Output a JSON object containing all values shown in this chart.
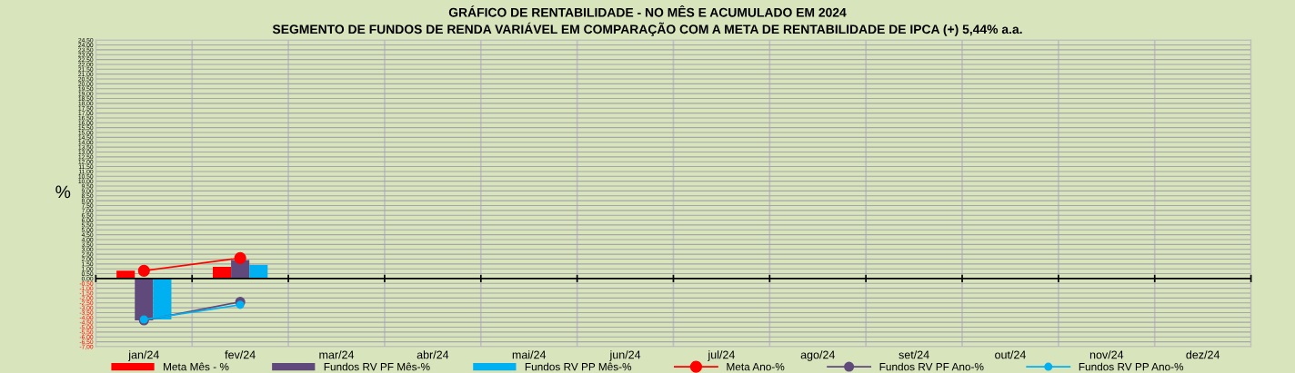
{
  "chart_data": {
    "type": "bar",
    "title": "GRÁFICO DE RENTABILIDADE - NO MÊS E ACUMULADO EM 2024",
    "subtitle": "SEGMENTO DE FUNDOS DE RENDA VARIÁVEL EM COMPARAÇÃO COM A META DE RENTABILIDADE DE IPCA (+) 5,44% a.a.",
    "ylabel": "%",
    "categories": [
      "jan/24",
      "fev/24",
      "mar/24",
      "abr/24",
      "mai/24",
      "jun/24",
      "jul/24",
      "ago/24",
      "set/24",
      "out/24",
      "nov/24",
      "dez/24"
    ],
    "series": [
      {
        "name": "Meta Mês - %",
        "color": "#ff0000",
        "values": [
          0.8,
          1.2,
          null,
          null,
          null,
          null,
          null,
          null,
          null,
          null,
          null,
          null
        ]
      },
      {
        "name": "Fundos RV PF Mês-%",
        "color": "#604a7b",
        "values": [
          -4.3,
          1.9,
          null,
          null,
          null,
          null,
          null,
          null,
          null,
          null,
          null,
          null
        ]
      },
      {
        "name": "Fundos RV PP Mês-%",
        "color": "#00b0f0",
        "values": [
          -4.2,
          1.4,
          null,
          null,
          null,
          null,
          null,
          null,
          null,
          null,
          null,
          null
        ]
      },
      {
        "name": "Meta Ano-%",
        "type": "line",
        "color": "#ff0000",
        "values": [
          0.8,
          2.1,
          null,
          null,
          null,
          null,
          null,
          null,
          null,
          null,
          null,
          null
        ]
      },
      {
        "name": "Fundos RV PF Ano-%",
        "type": "line",
        "color": "#604a7b",
        "values": [
          -4.3,
          -2.4,
          null,
          null,
          null,
          null,
          null,
          null,
          null,
          null,
          null,
          null
        ]
      },
      {
        "name": "Fundos RV PP Ano-%",
        "type": "line",
        "color": "#00b0f0",
        "values": [
          -4.2,
          -2.7,
          null,
          null,
          null,
          null,
          null,
          null,
          null,
          null,
          null,
          null
        ]
      }
    ],
    "ylim": [
      -7,
      24.5
    ],
    "yticks": [
      {
        "value": 24.5,
        "label": "24,50"
      },
      {
        "value": 24,
        "label": "24,00"
      },
      {
        "value": 23.5,
        "label": "23,50"
      },
      {
        "value": 23,
        "label": "23,00"
      },
      {
        "value": 22.5,
        "label": "22,50"
      },
      {
        "value": 22,
        "label": "22,00"
      },
      {
        "value": 21.5,
        "label": "21,50"
      },
      {
        "value": 21,
        "label": "21,00"
      },
      {
        "value": 20.5,
        "label": "20,50"
      },
      {
        "value": 20,
        "label": "20,00"
      },
      {
        "value": 19.5,
        "label": "19,50"
      },
      {
        "value": 19,
        "label": "19,00"
      },
      {
        "value": 18.5,
        "label": "18,50"
      },
      {
        "value": 18,
        "label": "18,00"
      },
      {
        "value": 17.5,
        "label": "17,50"
      },
      {
        "value": 17,
        "label": "17,00"
      },
      {
        "value": 16.5,
        "label": "16,50"
      },
      {
        "value": 16,
        "label": "16,00"
      },
      {
        "value": 15.5,
        "label": "15,50"
      },
      {
        "value": 15,
        "label": "15,00"
      },
      {
        "value": 14.5,
        "label": "14,50"
      },
      {
        "value": 14,
        "label": "14,00"
      },
      {
        "value": 13.5,
        "label": "13,50"
      },
      {
        "value": 13,
        "label": "13,00"
      },
      {
        "value": 12.5,
        "label": "12,50"
      },
      {
        "value": 12,
        "label": "12,00"
      },
      {
        "value": 11.5,
        "label": "11,50"
      },
      {
        "value": 11,
        "label": "11,00"
      },
      {
        "value": 10.5,
        "label": "10,50"
      },
      {
        "value": 10,
        "label": "10,00"
      },
      {
        "value": 9.5,
        "label": "9,50"
      },
      {
        "value": 9,
        "label": "9,00"
      },
      {
        "value": 8.5,
        "label": "8,50"
      },
      {
        "value": 8,
        "label": "8,00"
      },
      {
        "value": 7.5,
        "label": "7,50"
      },
      {
        "value": 7,
        "label": "7,00"
      },
      {
        "value": 6.5,
        "label": "6,50"
      },
      {
        "value": 6,
        "label": "6,00"
      },
      {
        "value": 5.5,
        "label": "5,50"
      },
      {
        "value": 5,
        "label": "5,00"
      },
      {
        "value": 4.5,
        "label": "4,50"
      },
      {
        "value": 4,
        "label": "4,00"
      },
      {
        "value": 3.5,
        "label": "3,50"
      },
      {
        "value": 3,
        "label": "3,00"
      },
      {
        "value": 2.5,
        "label": "2,50"
      },
      {
        "value": 2,
        "label": "2,00"
      },
      {
        "value": 1.5,
        "label": "1,50"
      },
      {
        "value": 1,
        "label": "1,00"
      },
      {
        "value": 0.5,
        "label": "0,50"
      },
      {
        "value": 0,
        "label": "0,00"
      },
      {
        "value": -0.5,
        "label": "-0,50"
      },
      {
        "value": -1,
        "label": "-1,00"
      },
      {
        "value": -1.5,
        "label": "-1,50"
      },
      {
        "value": -2,
        "label": "-2,00"
      },
      {
        "value": -2.5,
        "label": "-2,50"
      },
      {
        "value": -3,
        "label": "-3,00"
      },
      {
        "value": -3.5,
        "label": "-3,50"
      },
      {
        "value": -4,
        "label": "-4,00"
      },
      {
        "value": -4.5,
        "label": "-4,50"
      },
      {
        "value": -5,
        "label": "-5,00"
      },
      {
        "value": -5.5,
        "label": "-5,50"
      },
      {
        "value": -6,
        "label": "-6,00"
      },
      {
        "value": -6.5,
        "label": "-6,50"
      },
      {
        "value": -7,
        "label": "-7,00"
      }
    ],
    "grid": true,
    "legend": "bottom",
    "marker": "circle",
    "line_style": "solid"
  }
}
